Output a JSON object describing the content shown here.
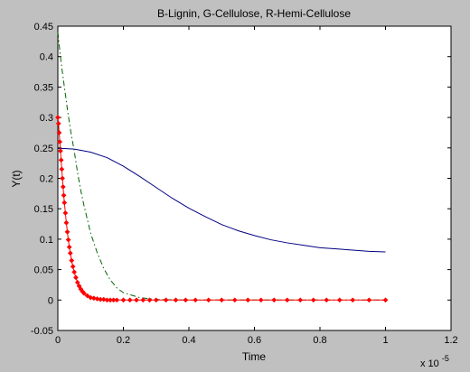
{
  "chart_data": {
    "type": "line",
    "title": "B-Lignin, G-Cellulose, R-Hemi-Cellulose",
    "xlabel": "Time",
    "ylabel": "Y(t)",
    "x_multiplier_base": "x 10",
    "x_multiplier_exponent": "-5",
    "xlim": [
      0,
      1.2
    ],
    "ylim": [
      -0.05,
      0.45
    ],
    "xticks": [
      0,
      0.2,
      0.4,
      0.6,
      0.8,
      1,
      1.2
    ],
    "xtick_labels": [
      "0",
      "0.2",
      "0.4",
      "0.6",
      "0.8",
      "1",
      "1.2"
    ],
    "yticks": [
      -0.05,
      0,
      0.05,
      0.1,
      0.15,
      0.2,
      0.25,
      0.3,
      0.35,
      0.4,
      0.45
    ],
    "ytick_labels": [
      "-0.05",
      "0",
      "0.05",
      "0.1",
      "0.15",
      "0.2",
      "0.25",
      "0.3",
      "0.35",
      "0.4",
      "0.45"
    ],
    "grid": false,
    "colors": {
      "background": "#c0c0c0",
      "plot_area": "#ffffff",
      "axes": "#000000"
    },
    "series": [
      {
        "color": "#000080",
        "style": "solid",
        "x": [
          0,
          0.02,
          0.05,
          0.08,
          0.1,
          0.15,
          0.2,
          0.25,
          0.3,
          0.35,
          0.4,
          0.45,
          0.5,
          0.55,
          0.6,
          0.65,
          0.7,
          0.75,
          0.8,
          0.85,
          0.9,
          0.95,
          1.0
        ],
        "y": [
          0.249,
          0.249,
          0.248,
          0.245,
          0.243,
          0.234,
          0.22,
          0.203,
          0.185,
          0.167,
          0.151,
          0.137,
          0.124,
          0.114,
          0.106,
          0.099,
          0.094,
          0.09,
          0.086,
          0.084,
          0.082,
          0.08,
          0.079
        ]
      },
      {
        "color": "#006400",
        "style": "dash-dot",
        "x": [
          0,
          0.01,
          0.02,
          0.03,
          0.04,
          0.05,
          0.06,
          0.07,
          0.08,
          0.1,
          0.12,
          0.14,
          0.16,
          0.18,
          0.2,
          0.25,
          0.3,
          0.4,
          0.5,
          0.6,
          0.7,
          0.8,
          0.9,
          1.0
        ],
        "y": [
          0.44,
          0.39,
          0.35,
          0.31,
          0.275,
          0.245,
          0.21,
          0.18,
          0.155,
          0.11,
          0.078,
          0.052,
          0.033,
          0.02,
          0.012,
          0.004,
          0.001,
          0.0,
          0.0,
          0.0,
          0.0,
          0.0,
          0.0,
          0.0
        ]
      },
      {
        "color": "#ff0000",
        "style": "markers",
        "x": [
          0,
          0.002,
          0.004,
          0.006,
          0.008,
          0.01,
          0.012,
          0.014,
          0.016,
          0.018,
          0.02,
          0.023,
          0.026,
          0.029,
          0.032,
          0.035,
          0.038,
          0.042,
          0.046,
          0.05,
          0.055,
          0.06,
          0.065,
          0.07,
          0.075,
          0.08,
          0.09,
          0.1,
          0.11,
          0.12,
          0.13,
          0.14,
          0.15,
          0.16,
          0.17,
          0.18,
          0.2,
          0.22,
          0.24,
          0.26,
          0.28,
          0.3,
          0.33,
          0.36,
          0.39,
          0.42,
          0.46,
          0.5,
          0.54,
          0.58,
          0.62,
          0.66,
          0.7,
          0.74,
          0.78,
          0.82,
          0.86,
          0.9,
          0.95,
          1.0
        ],
        "y": [
          0.3,
          0.29,
          0.275,
          0.26,
          0.245,
          0.23,
          0.215,
          0.2,
          0.186,
          0.172,
          0.16,
          0.143,
          0.127,
          0.112,
          0.099,
          0.087,
          0.077,
          0.065,
          0.055,
          0.046,
          0.037,
          0.029,
          0.023,
          0.018,
          0.014,
          0.011,
          0.007,
          0.004,
          0.003,
          0.002,
          0.001,
          0.001,
          0.0,
          0.0,
          0.0,
          0.0,
          0.0,
          0.0,
          0.0,
          0.0,
          0.0,
          0.0,
          0.0,
          0.0,
          0.0,
          0.0,
          0.0,
          0.0,
          0.0,
          0.0,
          0.0,
          0.0,
          0.0,
          0.0,
          0.0,
          0.0,
          0.0,
          0.0,
          0.0,
          0.0
        ]
      }
    ]
  }
}
